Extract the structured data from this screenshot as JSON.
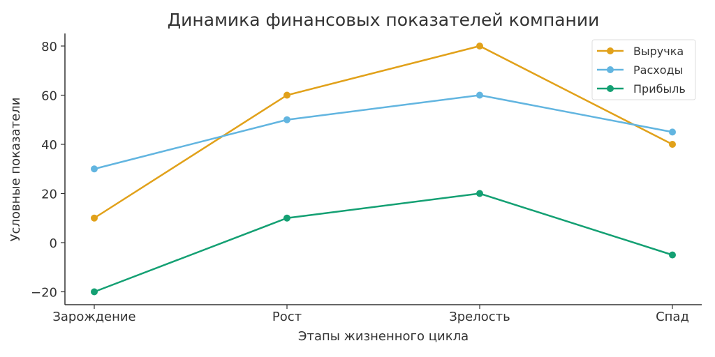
{
  "chart_data": {
    "type": "line",
    "title": "Динамика финансовых показателей компании",
    "xlabel": "Этапы жизненного цикла",
    "ylabel": "Условные показатели",
    "categories": [
      "Зарождение",
      "Рост",
      "Зрелость",
      "Спад"
    ],
    "yticks": [
      -20,
      0,
      20,
      40,
      60,
      80
    ],
    "ytick_labels": [
      "−20",
      "0",
      "20",
      "40",
      "60",
      "80"
    ],
    "ylim": [
      -25,
      85
    ],
    "grid": false,
    "legend_position": "top-right",
    "series": [
      {
        "name": "Выручка",
        "values": [
          10,
          60,
          80,
          40
        ],
        "color": "#E1A11A"
      },
      {
        "name": "Расходы",
        "values": [
          30,
          50,
          60,
          45
        ],
        "color": "#62B5E0"
      },
      {
        "name": "Прибыль",
        "values": [
          -20,
          10,
          20,
          -5
        ],
        "color": "#14A073"
      }
    ]
  }
}
